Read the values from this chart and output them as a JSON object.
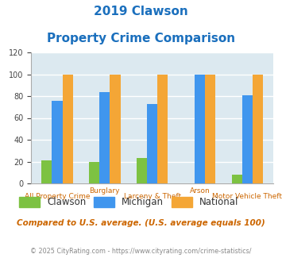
{
  "title_line1": "2019 Clawson",
  "title_line2": "Property Crime Comparison",
  "title_color": "#1a6fbd",
  "xtick_top": [
    "",
    "Burglary",
    "",
    "Arson",
    ""
  ],
  "xtick_bottom": [
    "All Property Crime",
    "",
    "Larceny & Theft",
    "",
    "Motor Vehicle Theft"
  ],
  "clawson": [
    21,
    20,
    23,
    0,
    8
  ],
  "michigan": [
    76,
    84,
    73,
    100,
    81
  ],
  "national": [
    100,
    100,
    100,
    100,
    100
  ],
  "clawson_color": "#7dc242",
  "michigan_color": "#4096ee",
  "national_color": "#f4a636",
  "ylim": [
    0,
    120
  ],
  "yticks": [
    0,
    20,
    40,
    60,
    80,
    100,
    120
  ],
  "bar_width": 0.22,
  "bg_color": "#dce9f0",
  "grid_color": "#ffffff",
  "note": "Compared to U.S. average. (U.S. average equals 100)",
  "note_color": "#cc6600",
  "footer": "© 2025 CityRating.com - https://www.cityrating.com/crime-statistics/",
  "footer_color": "#888888",
  "legend_labels": [
    "Clawson",
    "Michigan",
    "National"
  ],
  "xtick_color": "#cc6600"
}
